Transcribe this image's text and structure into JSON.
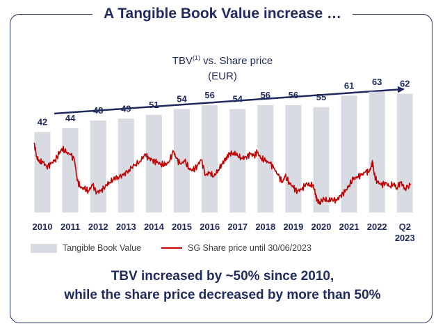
{
  "title": "A Tangible Book Value increase …",
  "subtitle": {
    "main": "TBV",
    "sup": "(1)",
    "rest": " vs. Share price",
    "unit": "(EUR)"
  },
  "legend": {
    "bar_label": "Tangible Book Value",
    "line_label": "SG Share price until 30/06/2023"
  },
  "conclusion": {
    "line1": "TBV increased by ~50% since 2010,",
    "line2": "while the share price decreased by more than 50%"
  },
  "colors": {
    "navy": "#1f2a5e",
    "bar": "#d9dbe3",
    "line": "#c00000"
  },
  "chart_data": {
    "type": "bar",
    "categories": [
      "2010",
      "2011",
      "2012",
      "2013",
      "2014",
      "2015",
      "2016",
      "2017",
      "2018",
      "2019",
      "2020",
      "2021",
      "2022",
      "Q2 2023"
    ],
    "category_lines": [
      [
        "2010"
      ],
      [
        "2011"
      ],
      [
        "2012"
      ],
      [
        "2013"
      ],
      [
        "2014"
      ],
      [
        "2015"
      ],
      [
        "2016"
      ],
      [
        "2017"
      ],
      [
        "2018"
      ],
      [
        "2019"
      ],
      [
        "2020"
      ],
      [
        "2021"
      ],
      [
        "2022"
      ],
      [
        "Q2",
        "2023"
      ]
    ],
    "series": [
      {
        "name": "Tangible Book Value",
        "type": "bar",
        "values": [
          42,
          44,
          48,
          49,
          51,
          54,
          56,
          54,
          56,
          56,
          55,
          61,
          63,
          62
        ]
      },
      {
        "name": "SG Share price until 30/06/2023",
        "type": "line",
        "x": [
          2010.0,
          2010.1,
          2010.2,
          2010.3,
          2010.45,
          2010.6,
          2010.75,
          2010.9,
          2011.0,
          2011.15,
          2011.3,
          2011.45,
          2011.55,
          2011.65,
          2011.8,
          2011.95,
          2012.1,
          2012.25,
          2012.4,
          2012.55,
          2012.7,
          2012.85,
          2013.0,
          2013.2,
          2013.4,
          2013.6,
          2013.8,
          2014.0,
          2014.1,
          2014.25,
          2014.4,
          2014.55,
          2014.7,
          2014.85,
          2015.0,
          2015.1,
          2015.25,
          2015.4,
          2015.55,
          2015.7,
          2015.85,
          2016.0,
          2016.15,
          2016.3,
          2016.45,
          2016.6,
          2016.75,
          2016.9,
          2017.0,
          2017.15,
          2017.3,
          2017.45,
          2017.6,
          2017.75,
          2017.9,
          2018.0,
          2018.15,
          2018.3,
          2018.45,
          2018.6,
          2018.75,
          2018.9,
          2019.0,
          2019.15,
          2019.3,
          2019.45,
          2019.6,
          2019.75,
          2019.9,
          2020.0,
          2020.1,
          2020.15,
          2020.25,
          2020.4,
          2020.55,
          2020.7,
          2020.85,
          2021.0,
          2021.15,
          2021.3,
          2021.45,
          2021.6,
          2021.75,
          2021.9,
          2022.0,
          2022.1,
          2022.15,
          2022.2,
          2022.3,
          2022.45,
          2022.6,
          2022.75,
          2022.9,
          2023.0,
          2023.15,
          2023.3,
          2023.5
        ],
        "values": [
          54,
          44,
          40,
          41,
          37,
          39,
          42,
          46,
          50,
          47,
          46,
          42,
          27,
          23,
          21,
          20,
          24,
          19,
          20,
          23,
          26,
          28,
          30,
          31,
          35,
          38,
          41,
          46,
          43,
          42,
          40,
          39,
          38,
          41,
          48,
          43,
          39,
          41,
          36,
          34,
          38,
          42,
          31,
          33,
          30,
          35,
          39,
          44,
          46,
          47,
          45,
          43,
          44,
          46,
          45,
          47,
          43,
          41,
          40,
          36,
          31,
          26,
          30,
          26,
          22,
          20,
          21,
          25,
          24,
          24,
          18,
          13,
          12,
          14,
          13,
          14,
          13,
          17,
          19,
          24,
          28,
          30,
          31,
          34,
          33,
          37,
          40,
          31,
          27,
          24,
          26,
          23,
          25,
          22,
          26,
          22,
          24
        ]
      }
    ]
  }
}
